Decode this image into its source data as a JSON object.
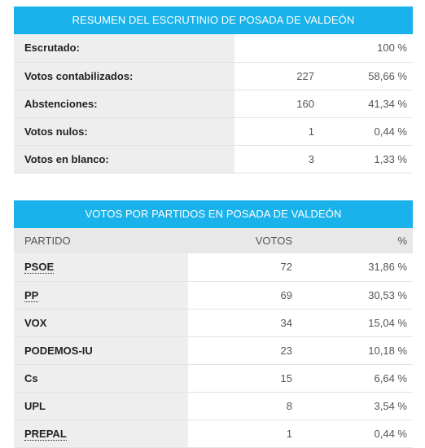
{
  "summary": {
    "title": "RESUMEN DEL ESCRUTINIO DE POSADA DE VALDEÓN",
    "rows": [
      {
        "label": "Escrutado:",
        "count": "",
        "pct": "100 %"
      },
      {
        "label": "Votos contabilizados:",
        "count": "227",
        "pct": "58,66 %"
      },
      {
        "label": "Abstenciones:",
        "count": "160",
        "pct": "41,34 %"
      },
      {
        "label": "Votos nulos:",
        "count": "1",
        "pct": "0,44 %"
      },
      {
        "label": "Votos en blanco:",
        "count": "3",
        "pct": "1,33 %"
      }
    ]
  },
  "parties": {
    "title": "VOTOS POR PARTIDOS EN POSADA DE VALDEÓN",
    "headers": {
      "party": "PARTIDO",
      "votes": "VOTOS",
      "pct": "%"
    },
    "rows": [
      {
        "party": "PSOE",
        "votes": "72",
        "pct": "31,86 %",
        "abbr": true
      },
      {
        "party": "PP",
        "votes": "69",
        "pct": "30,53 %",
        "abbr": true
      },
      {
        "party": "VOX",
        "votes": "34",
        "pct": "15,04 %",
        "abbr": false
      },
      {
        "party": "PODEMOS-IU",
        "votes": "23",
        "pct": "10,18 %",
        "abbr": false
      },
      {
        "party": "Cs",
        "votes": "15",
        "pct": "6,64 %",
        "abbr": false
      },
      {
        "party": "UPL",
        "votes": "8",
        "pct": "3,54 %",
        "abbr": false
      },
      {
        "party": "PREPAL",
        "votes": "1",
        "pct": "0,44 %",
        "abbr": true
      }
    ]
  },
  "colors": {
    "header_bg": "#1ab2ea",
    "label_bg": "#eeeeee",
    "thead_bg": "#e8e8e8"
  }
}
